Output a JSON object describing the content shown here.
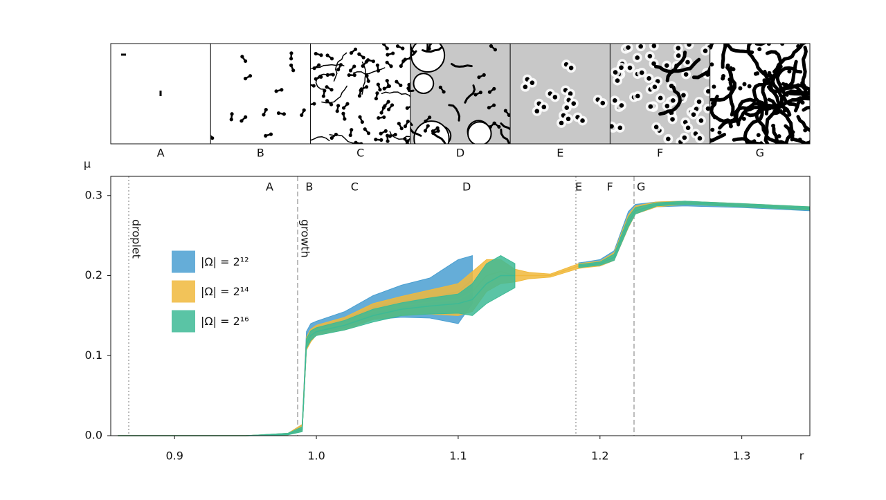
{
  "panels": [
    "A",
    "B",
    "C",
    "D",
    "E",
    "F",
    "G"
  ],
  "chart_data": {
    "type": "band",
    "xlabel": "r",
    "ylabel": "μ",
    "xlim": [
      0.855,
      1.348
    ],
    "ylim": [
      0,
      0.324
    ],
    "xticks": [
      0.9,
      {
        "value": 1,
        "label": "1.0"
      },
      1.1,
      1.2,
      1.3
    ],
    "yticks": [
      {
        "value": 0,
        "label": "0.0"
      },
      0.1,
      0.2,
      0.3
    ],
    "vlines": [
      {
        "x": 0.8677,
        "label": "droplet",
        "style": "dotted"
      },
      {
        "x": 0.9868,
        "label": "growth",
        "style": "dashed"
      },
      {
        "x": 1.183,
        "style": "dotted"
      },
      {
        "x": 1.224,
        "style": "dashed"
      }
    ],
    "regions": [
      {
        "label": "A",
        "x": 0.967
      },
      {
        "label": "B",
        "x": 0.995
      },
      {
        "label": "C",
        "x": 1.027
      },
      {
        "label": "D",
        "x": 1.106
      },
      {
        "label": "E",
        "x": 1.185
      },
      {
        "label": "F",
        "x": 1.207
      },
      {
        "label": "G",
        "x": 1.229
      }
    ],
    "legend_loc": "center left",
    "x": [
      0.86,
      0.9,
      0.95,
      0.98,
      0.99,
      0.993,
      0.996,
      1.0,
      1.02,
      1.04,
      1.06,
      1.08,
      1.1,
      1.11,
      1.12,
      1.13,
      1.14,
      1.15,
      1.165,
      1.185,
      1.19,
      1.2,
      1.21,
      1.22,
      1.225,
      1.24,
      1.26,
      1.3,
      1.348
    ],
    "series": [
      {
        "name": "|Ω| = 2¹²",
        "color": "#4a9fd1",
        "values": [
          0,
          0,
          0,
          0.002,
          0.01,
          0.12,
          0.13,
          0.135,
          0.145,
          0.16,
          0.168,
          0.172,
          0.18,
          0.195,
          null,
          null,
          null,
          null,
          null,
          0.213,
          0.214,
          0.216,
          0.225,
          0.27,
          0.283,
          0.289,
          0.29,
          0.287,
          0.283
        ],
        "spread": [
          0,
          0,
          0,
          0.001,
          0.004,
          0.01,
          0.01,
          0.008,
          0.01,
          0.015,
          0.02,
          0.025,
          0.04,
          0.03,
          null,
          null,
          null,
          null,
          null,
          0.003,
          0.003,
          0.004,
          0.006,
          0.01,
          0.006,
          0.003,
          0.003,
          0.002,
          0.002
        ]
      },
      {
        "name": "|Ω| = 2¹⁴",
        "color": "#f0b93c",
        "values": [
          0,
          0,
          0,
          0.002,
          0.01,
          0.115,
          0.125,
          0.132,
          0.14,
          0.155,
          0.162,
          0.167,
          0.17,
          0.18,
          0.2,
          0.205,
          0.2,
          0.2,
          0.2,
          0.212,
          0.213,
          0.215,
          0.224,
          0.268,
          0.282,
          0.289,
          0.291,
          0.288,
          0.284
        ],
        "spread": [
          0,
          0,
          0,
          0.001,
          0.004,
          0.008,
          0.008,
          0.006,
          0.008,
          0.01,
          0.012,
          0.015,
          0.02,
          0.025,
          0.02,
          0.015,
          0.008,
          0.004,
          0.002,
          0.003,
          0.003,
          0.003,
          0.005,
          0.008,
          0.005,
          0.003,
          0.002,
          0.002,
          0.002
        ]
      },
      {
        "name": "|Ω| = 2¹⁶",
        "color": "#3dba95",
        "values": [
          0,
          0,
          0,
          0.002,
          0.008,
          0.115,
          0.125,
          0.13,
          0.138,
          0.15,
          0.158,
          0.162,
          0.165,
          0.17,
          0.19,
          0.2,
          0.2,
          null,
          null,
          0.212,
          0.213,
          0.215,
          0.223,
          0.267,
          0.281,
          0.289,
          0.291,
          0.288,
          0.284
        ],
        "spread": [
          0,
          0,
          0,
          0.001,
          0.003,
          0.006,
          0.006,
          0.005,
          0.006,
          0.008,
          0.008,
          0.01,
          0.012,
          0.02,
          0.025,
          0.025,
          0.015,
          null,
          null,
          0.002,
          0.002,
          0.002,
          0.004,
          0.006,
          0.004,
          0.002,
          0.002,
          0.002,
          0.002
        ]
      }
    ]
  }
}
